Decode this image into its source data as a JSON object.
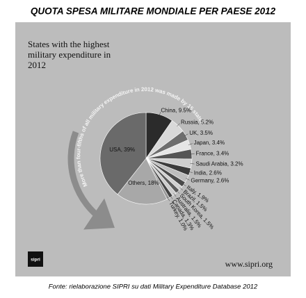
{
  "chart_data": {
    "type": "pie",
    "title": "QUOTA SPESA MILITARE MONDIALE PER PAESE 2012",
    "subtitle": "States with the highest military expenditure in 2012",
    "annotation": "More than four-fifths of all military expenditure in 2012 was made by 15 states",
    "logo": "sipri",
    "website": "www.sipri.org",
    "source": "Fonte: rielaborazione SIPRI su dati Military Expenditure Database 2012",
    "categories": [
      "China",
      "Russia",
      "UK",
      "Japan",
      "France",
      "Saudi Arabia",
      "India",
      "Germany",
      "Italy",
      "Brazil",
      "South Korea",
      "Australia",
      "Canada",
      "Turkey",
      "Others",
      "USA"
    ],
    "values": [
      9.5,
      5.2,
      3.5,
      3.4,
      3.4,
      3.2,
      2.6,
      2.6,
      1.9,
      1.5,
      1.5,
      1.5,
      1.3,
      1.0,
      18,
      39
    ],
    "value_labels": [
      "China, 9.5%",
      "Russia, 5.2%",
      "UK, 3.5%",
      "Japan, 3.4%",
      "France, 3.4%",
      "Saudi Arabia, 3.2%",
      "India, 2.6%",
      "Germany, 2.6%",
      "Italy, 1.9%",
      "Brazil, 1.5%",
      "South Korea, 1.5%",
      "Australia, 1.5%",
      "Canada, 1.3%",
      "Turkey, 1.0%",
      "Others, 18%",
      "USA, 39%"
    ],
    "colors": [
      "#2b2b2b",
      "#d9d9d9",
      "#6e6e6e",
      "#e6e6e6",
      "#555555",
      "#cfcfcf",
      "#3c3c3c",
      "#bdbdbd",
      "#4a4a4a",
      "#d0d0d0",
      "#5c5c5c",
      "#cccccc",
      "#444444",
      "#999999",
      "#a8a8a8",
      "#6a6a6a"
    ]
  }
}
